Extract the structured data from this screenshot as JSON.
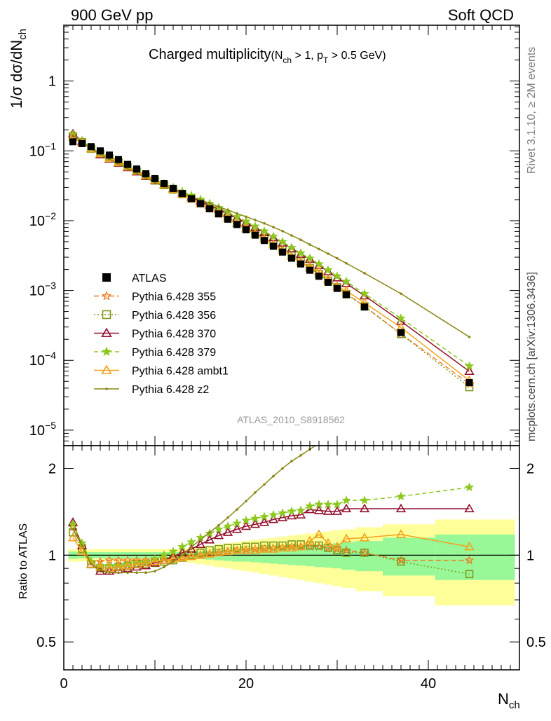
{
  "header": {
    "energy_label": "900 GeV pp",
    "process_label": "Soft QCD"
  },
  "side": {
    "rivet": "Rivet 3.1.10, ≥ 2M events",
    "ref": "mcplots.cern.ch [arXiv:1306.3436]"
  },
  "plot": {
    "title_main": "Charged multiplicity",
    "title_cut": "(N",
    "title_cut_sub": "ch",
    "title_cut_mid": " > 1, p",
    "title_cut_sub2": "T",
    "title_cut_end": " > 0.5 GeV)",
    "analysis_id": "ATLAS_2010_S8918562"
  },
  "chart_data": {
    "type": "line",
    "x": [
      1,
      2,
      3,
      4,
      5,
      6,
      7,
      8,
      9,
      10,
      11,
      12,
      13,
      14,
      15,
      16,
      17,
      18,
      19,
      20,
      21,
      22,
      23,
      24,
      25,
      26,
      27,
      28,
      29,
      30,
      31,
      33,
      37,
      44.5
    ],
    "xlabel_main": "N",
    "xlabel_sub": "ch",
    "ylabel_top_main": "1/σ dσ/dN",
    "ylabel_top_sub": "ch",
    "ylabel_ratio": "Ratio to ATLAS",
    "xlim": [
      0,
      50
    ],
    "xticks": [
      "0",
      "20",
      "40"
    ],
    "ylim_top": [
      6e-06,
      6.3
    ],
    "yticks_top": [
      {
        "base": "10",
        "exp": "−5",
        "value": 1e-05
      },
      {
        "base": "10",
        "exp": "−4",
        "value": 0.0001
      },
      {
        "base": "10",
        "exp": "−3",
        "value": 0.001
      },
      {
        "base": "10",
        "exp": "−2",
        "value": 0.01
      },
      {
        "base": "10",
        "exp": "−1",
        "value": 0.1
      },
      {
        "base": "1",
        "exp": "",
        "value": 1
      }
    ],
    "ylim_ratio": [
      0.4,
      2.4
    ],
    "yticks_ratio": [
      "0.5",
      "1",
      "2"
    ],
    "data": {
      "name": "ATLAS",
      "values": [
        0.135,
        0.127,
        0.115,
        0.1,
        0.087,
        0.075,
        0.064,
        0.055,
        0.047,
        0.04,
        0.034,
        0.029,
        0.0245,
        0.0207,
        0.0175,
        0.0148,
        0.0125,
        0.0105,
        0.0088,
        0.0074,
        0.0062,
        0.0052,
        0.0043,
        0.00355,
        0.0029,
        0.0024,
        0.00195,
        0.0016,
        0.00131,
        0.00107,
        0.00087,
        0.00058,
        0.00025,
        4.8e-05
      ],
      "stat_band_rel": [
        0.03,
        0.025,
        0.025,
        0.025,
        0.025,
        0.025,
        0.025,
        0.025,
        0.025,
        0.025,
        0.025,
        0.025,
        0.025,
        0.025,
        0.03,
        0.035,
        0.04,
        0.045,
        0.05,
        0.05,
        0.055,
        0.06,
        0.065,
        0.07,
        0.075,
        0.08,
        0.085,
        0.09,
        0.095,
        0.1,
        0.11,
        0.12,
        0.15,
        0.18
      ],
      "total_band_rel": [
        0.05,
        0.05,
        0.05,
        0.05,
        0.05,
        0.05,
        0.05,
        0.05,
        0.05,
        0.05,
        0.05,
        0.05,
        0.05,
        0.06,
        0.07,
        0.08,
        0.09,
        0.1,
        0.11,
        0.12,
        0.13,
        0.14,
        0.15,
        0.16,
        0.17,
        0.18,
        0.19,
        0.2,
        0.21,
        0.22,
        0.23,
        0.25,
        0.28,
        0.33
      ]
    },
    "series": [
      {
        "name": "Pythia 6.428 355",
        "color": "#f07921",
        "marker": "star-open",
        "dash": "7,4",
        "ratio": [
          1.25,
          1.08,
          0.95,
          0.95,
          0.96,
          0.96,
          0.96,
          0.96,
          0.96,
          0.965,
          0.97,
          0.975,
          0.98,
          0.99,
          1.0,
          1.01,
          1.02,
          1.03,
          1.04,
          1.045,
          1.05,
          1.055,
          1.06,
          1.065,
          1.07,
          1.07,
          1.07,
          1.07,
          1.06,
          1.05,
          1.04,
          1.02,
          0.96,
          0.96
        ]
      },
      {
        "name": "Pythia 6.428 356",
        "color": "#7d9a1a",
        "marker": "square-open",
        "dash": "2,3",
        "ratio": [
          1.2,
          1.05,
          0.93,
          0.9,
          0.9,
          0.91,
          0.92,
          0.93,
          0.93,
          0.94,
          0.95,
          0.96,
          0.98,
          1.0,
          1.02,
          1.04,
          1.05,
          1.06,
          1.06,
          1.07,
          1.07,
          1.08,
          1.08,
          1.08,
          1.09,
          1.09,
          1.08,
          1.08,
          1.06,
          1.04,
          1.02,
          1.02,
          0.95,
          0.86
        ]
      },
      {
        "name": "Pythia 6.428 370",
        "color": "#92102b",
        "marker": "triangle-open",
        "dash": "",
        "ratio": [
          1.3,
          1.08,
          0.93,
          0.88,
          0.88,
          0.89,
          0.9,
          0.91,
          0.92,
          0.94,
          0.96,
          0.99,
          1.02,
          1.05,
          1.09,
          1.13,
          1.17,
          1.2,
          1.23,
          1.26,
          1.28,
          1.3,
          1.33,
          1.35,
          1.37,
          1.38,
          1.44,
          1.43,
          1.42,
          1.42,
          1.45,
          1.45,
          1.45,
          1.45
        ]
      },
      {
        "name": "Pythia 6.428 379",
        "color": "#8dc81e",
        "marker": "star-filled",
        "dash": "6,4",
        "ratio": [
          1.28,
          1.1,
          0.95,
          0.92,
          0.92,
          0.92,
          0.93,
          0.94,
          0.95,
          0.97,
          1.0,
          1.03,
          1.07,
          1.11,
          1.15,
          1.19,
          1.23,
          1.26,
          1.29,
          1.32,
          1.34,
          1.36,
          1.38,
          1.4,
          1.42,
          1.43,
          1.48,
          1.5,
          1.5,
          1.5,
          1.55,
          1.55,
          1.6,
          1.72
        ]
      },
      {
        "name": "Pythia 6.428 ambt1",
        "color": "#f1a21c",
        "marker": "triangle-open",
        "dash": "",
        "ratio": [
          1.15,
          1.03,
          0.93,
          0.91,
          0.9,
          0.91,
          0.92,
          0.93,
          0.94,
          0.95,
          0.96,
          0.97,
          0.98,
          0.99,
          1.0,
          1.01,
          1.02,
          1.03,
          1.04,
          1.04,
          1.04,
          1.05,
          1.05,
          1.06,
          1.06,
          1.07,
          1.12,
          1.18,
          1.1,
          1.07,
          1.14,
          1.15,
          1.18,
          1.07
        ]
      },
      {
        "name": "Pythia 6.428 z2",
        "color": "#8b8614",
        "marker": "dot",
        "dash": "",
        "ratio": [
          1.23,
          1.08,
          0.93,
          0.89,
          0.87,
          0.87,
          0.87,
          0.87,
          0.87,
          0.88,
          0.91,
          0.95,
          1.0,
          1.07,
          1.13,
          1.2,
          1.27,
          1.35,
          1.44,
          1.54,
          1.65,
          1.76,
          1.88,
          2.0,
          2.12,
          2.22,
          2.33,
          2.45,
          2.57,
          2.7,
          2.82,
          3.05,
          3.6,
          4.5
        ]
      }
    ]
  }
}
